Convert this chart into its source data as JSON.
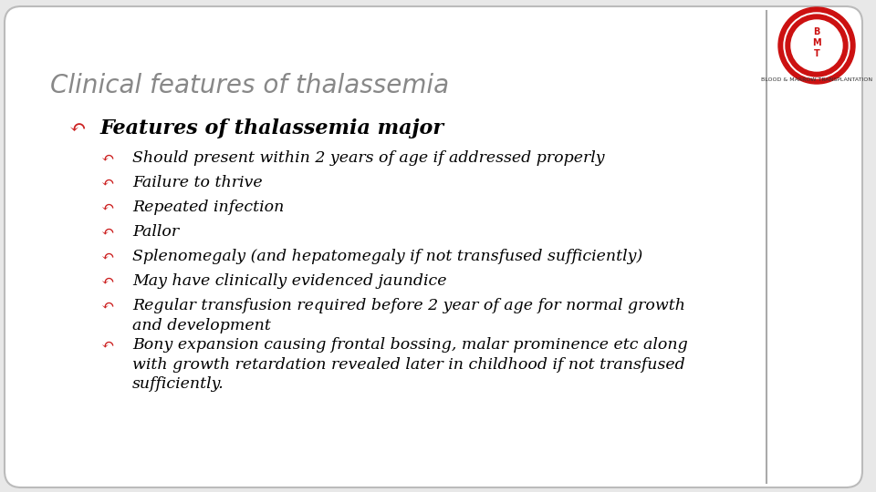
{
  "title": "Clinical features of thalassemia",
  "title_color": "#888888",
  "title_fontsize": 20,
  "bg_color": "#ffffff",
  "slide_bg": "#e8e8e8",
  "level1_bullet": "↶",
  "level1_text": "Features of thalassemia major",
  "level1_fontsize": 16,
  "level1_color": "#000000",
  "bullet_color": "#cc2222",
  "level2_items": [
    "Should present within 2 years of age if addressed properly",
    "Failure to thrive",
    "Repeated infection",
    "Pallor",
    "Splenomegaly (and hepatomegaly if not transfused sufficiently)",
    "May have clinically evidenced jaundice",
    "Regular transfusion required before 2 year of age for normal growth\nand development",
    "Bony expansion causing frontal bossing, malar prominence etc along\nwith growth retardation revealed later in childhood if not transfused\nsufficiently."
  ],
  "level2_fontsize": 12.5,
  "level2_color": "#000000",
  "border_color": "#bbbbbb"
}
